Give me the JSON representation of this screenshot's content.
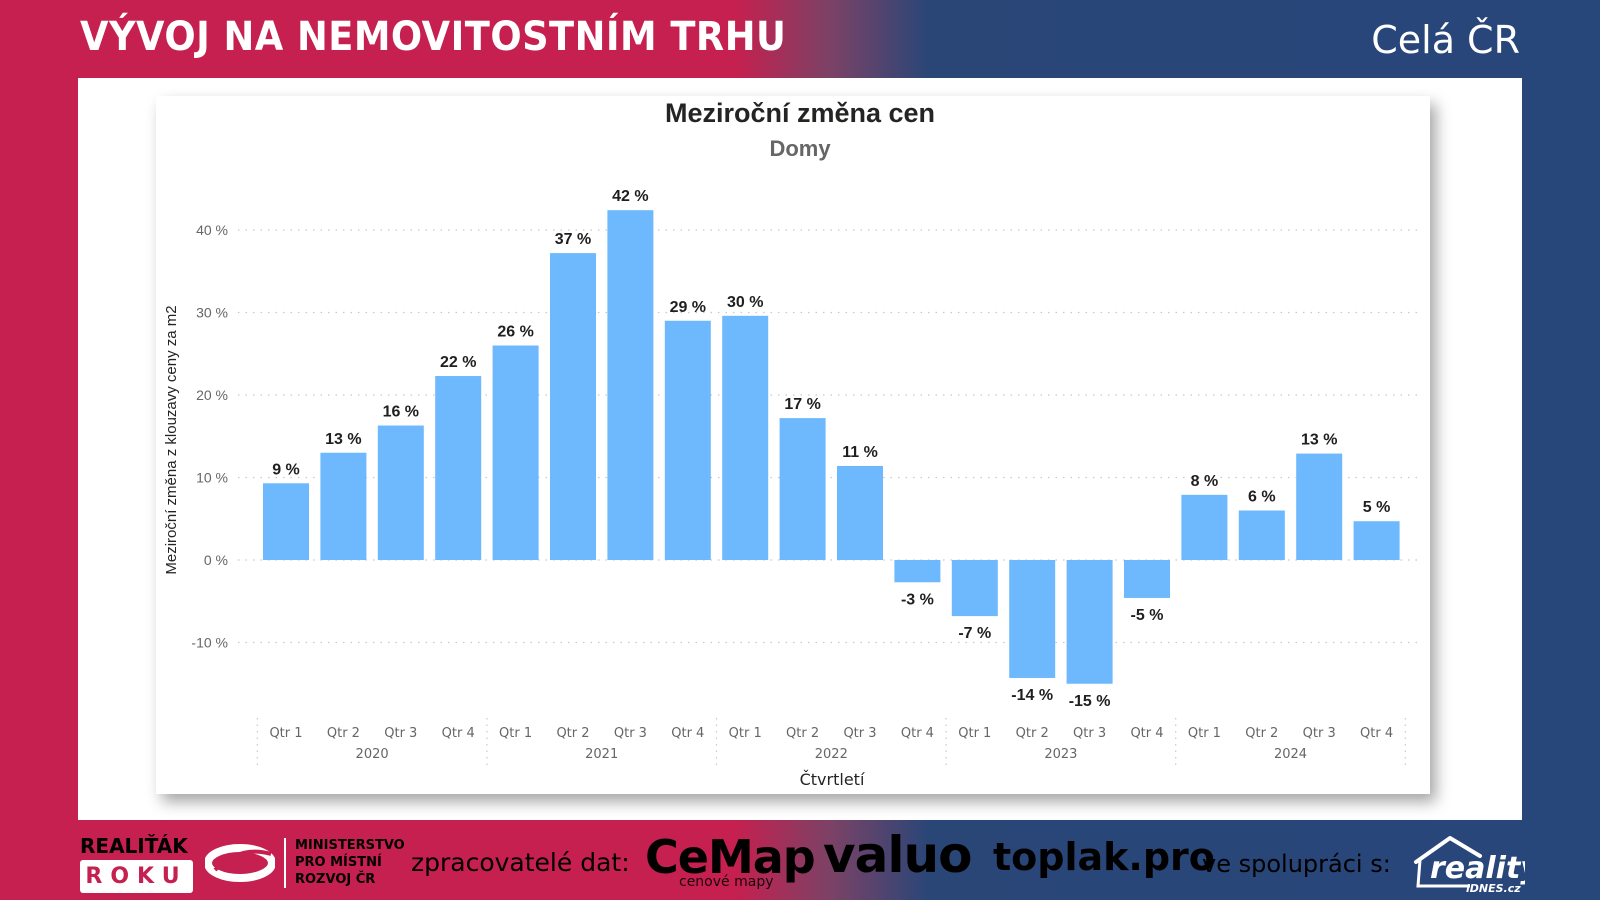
{
  "header": {
    "title": "VÝVOJ NA NEMOVITOSTNÍM TRHU",
    "region": "Celá ČR"
  },
  "colors": {
    "brand_red": "#c5204f",
    "brand_blue": "#27467a",
    "bar": "#6eb9fd",
    "label": "#1f1f1f",
    "tick": "#666666",
    "grid": "#c8c8c8"
  },
  "chart_data": {
    "type": "bar",
    "title": "Meziroční změna cen",
    "subtitle": "Domy",
    "xlabel": "Čtvrtletí",
    "ylabel": "Meziroční změna z klouzavy ceny za m2",
    "ylim": [
      -15,
      45
    ],
    "yticks": [
      -10,
      0,
      10,
      20,
      30,
      40
    ],
    "ytick_labels": [
      "-10 %",
      "0 %",
      "10 %",
      "20 %",
      "30 %",
      "40 %"
    ],
    "grid": true,
    "legend": "none",
    "years": [
      "2020",
      "2021",
      "2022",
      "2023",
      "2024"
    ],
    "categories": [
      "Qtr 1",
      "Qtr 2",
      "Qtr 3",
      "Qtr 4",
      "Qtr 1",
      "Qtr 2",
      "Qtr 3",
      "Qtr 4",
      "Qtr 1",
      "Qtr 2",
      "Qtr 3",
      "Qtr 4",
      "Qtr 1",
      "Qtr 2",
      "Qtr 3",
      "Qtr 4",
      "Qtr 1",
      "Qtr 2",
      "Qtr 3",
      "Qtr 4"
    ],
    "values": [
      9.3,
      13.0,
      16.3,
      22.3,
      26.0,
      37.2,
      42.4,
      29.0,
      29.6,
      17.2,
      11.4,
      -2.7,
      -6.8,
      -14.3,
      -15.0,
      -4.6,
      7.9,
      6.0,
      12.9,
      4.7
    ],
    "data_labels": [
      "9 %",
      "13 %",
      "16 %",
      "22 %",
      "26 %",
      "37 %",
      "42 %",
      "29 %",
      "30 %",
      "17 %",
      "11 %",
      "-3 %",
      "-7 %",
      "-14 %",
      "-15 %",
      "-5 %",
      "8 %",
      "6 %",
      "13 %",
      "5 %"
    ]
  },
  "footer": {
    "award_line1": "REALIŤÁK",
    "award_line2": "ROKU",
    "ministry_line1": "MINISTERSTVO",
    "ministry_line2": "PRO MÍSTNÍ",
    "ministry_line3": "ROZVOJ ČR",
    "processors_label": "zpracovatelé dat:",
    "cemap": "CeMap",
    "cemap_sub": "cenové mapy",
    "valuo": "valuo",
    "toplak": "toplak.pro",
    "cooperation_label": "ve spolupráci s:",
    "reality_main": "reality",
    "reality_sub": "iDNES.cz"
  }
}
